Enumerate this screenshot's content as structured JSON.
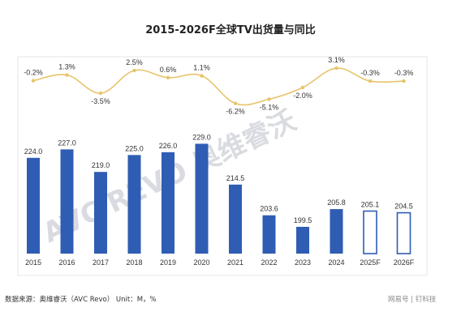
{
  "chart_data": {
    "type": "bar",
    "title": "2015-2026F全球TV出货量与同比",
    "categories": [
      "2015",
      "2016",
      "2017",
      "2018",
      "2019",
      "2020",
      "2021",
      "2022",
      "2023",
      "2024",
      "2025F",
      "2026F"
    ],
    "series": [
      {
        "type": "bar",
        "values": [
          224.0,
          227.0,
          219.0,
          225.0,
          226.0,
          229.0,
          214.5,
          203.6,
          199.5,
          205.8,
          205.1,
          204.5
        ],
        "labels": [
          "224.0",
          "227.0",
          "219.0",
          "225.0",
          "226.0",
          "229.0",
          "214.5",
          "203.6",
          "199.5",
          "205.8",
          "205.1",
          "204.5"
        ],
        "forecast": [
          false,
          false,
          false,
          false,
          false,
          false,
          false,
          false,
          false,
          false,
          true,
          true
        ],
        "color": "#2e5db3"
      },
      {
        "type": "line",
        "values": [
          -0.2,
          1.3,
          -3.5,
          2.5,
          0.6,
          1.1,
          -6.2,
          -5.1,
          -2.0,
          3.1,
          -0.3,
          -0.3
        ],
        "labels": [
          "-0.2%",
          "1.3%",
          "-3.5%",
          "2.5%",
          "0.6%",
          "1.1%",
          "-6.2%",
          "-5.1%",
          "-2.0%",
          "3.1%",
          "-0.3%",
          "-0.3%"
        ],
        "color": "#e8c46a"
      }
    ],
    "bar_ylim": [
      190,
      232
    ],
    "line_ylim": [
      -8,
      4
    ],
    "grid": false,
    "legend": "none"
  },
  "source_note": "数据来源：奥维睿沃（AVC Revo） Unit：M，%",
  "watermark": "网易号 | 钉科技",
  "logo_text": "AVC REVO 奥维睿沃"
}
